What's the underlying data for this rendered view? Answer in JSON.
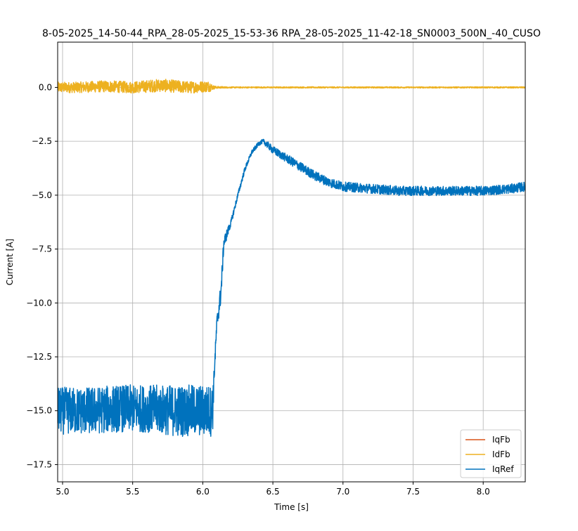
{
  "chart_data": {
    "type": "line",
    "title": "8-05-2025_14-50-44_RPA_28-05-2025_15-53-36 RPA_28-05-2025_11-42-18_SN0003_500N_-40_CUSO",
    "xlabel": "Time [s]",
    "ylabel": "Current [A]",
    "xlim": [
      4.965,
      8.3
    ],
    "ylim": [
      -18.3,
      2.1
    ],
    "x_ticks": [
      5.0,
      5.5,
      6.0,
      6.5,
      7.0,
      7.5,
      8.0
    ],
    "x_tick_labels": [
      "5.0",
      "5.5",
      "6.0",
      "6.5",
      "7.0",
      "7.5",
      "8.0"
    ],
    "y_ticks": [
      0.0,
      -2.5,
      -5.0,
      -7.5,
      -10.0,
      -12.5,
      -15.0,
      -17.5
    ],
    "y_tick_labels": [
      "0.0",
      "−2.5",
      "−5.0",
      "−7.5",
      "−10.0",
      "−12.5",
      "−15.0",
      "−17.5"
    ],
    "grid": true,
    "legend_position": "bottom-right",
    "series": [
      {
        "name": "IqFb",
        "color": "#d95319",
        "x": [],
        "y": []
      },
      {
        "name": "IdFb",
        "color": "#edb120",
        "x": [
          4.965,
          5.1,
          5.3,
          5.5,
          5.7,
          5.9,
          6.05,
          6.07,
          6.1,
          6.2,
          6.5,
          7.0,
          7.5,
          8.0,
          8.3
        ],
        "y": [
          0.0,
          0.0,
          0.05,
          0.0,
          0.1,
          0.0,
          0.05,
          0.0,
          0.0,
          0.0,
          0.0,
          0.0,
          0.0,
          0.0,
          0.0
        ],
        "noise": [
          0.25,
          0.25,
          0.27,
          0.27,
          0.3,
          0.28,
          0.25,
          0.1,
          0.05,
          0.03,
          0.03,
          0.03,
          0.03,
          0.03,
          0.03
        ]
      },
      {
        "name": "IqRef",
        "color": "#0072bd",
        "x": [
          4.965,
          5.2,
          5.4,
          5.6,
          5.8,
          6.0,
          6.07,
          6.08,
          6.1,
          6.13,
          6.15,
          6.2,
          6.25,
          6.3,
          6.35,
          6.4,
          6.43,
          6.45,
          6.5,
          6.6,
          6.7,
          6.8,
          6.9,
          7.0,
          7.2,
          7.4,
          7.6,
          7.8,
          8.0,
          8.2,
          8.3
        ],
        "y": [
          -15.0,
          -15.0,
          -14.9,
          -14.9,
          -15.0,
          -15.0,
          -15.0,
          -13.5,
          -11.0,
          -9.5,
          -7.2,
          -6.3,
          -5.0,
          -3.8,
          -3.0,
          -2.6,
          -2.5,
          -2.6,
          -2.9,
          -3.3,
          -3.7,
          -4.1,
          -4.4,
          -4.6,
          -4.7,
          -4.8,
          -4.8,
          -4.8,
          -4.8,
          -4.7,
          -4.6
        ],
        "noise": [
          1.1,
          1.1,
          1.1,
          1.1,
          1.2,
          1.2,
          1.2,
          0.4,
          0.4,
          0.5,
          0.3,
          0.15,
          0.12,
          0.12,
          0.1,
          0.1,
          0.1,
          0.15,
          0.18,
          0.2,
          0.22,
          0.22,
          0.22,
          0.22,
          0.22,
          0.22,
          0.22,
          0.22,
          0.22,
          0.22,
          0.22
        ]
      }
    ]
  }
}
